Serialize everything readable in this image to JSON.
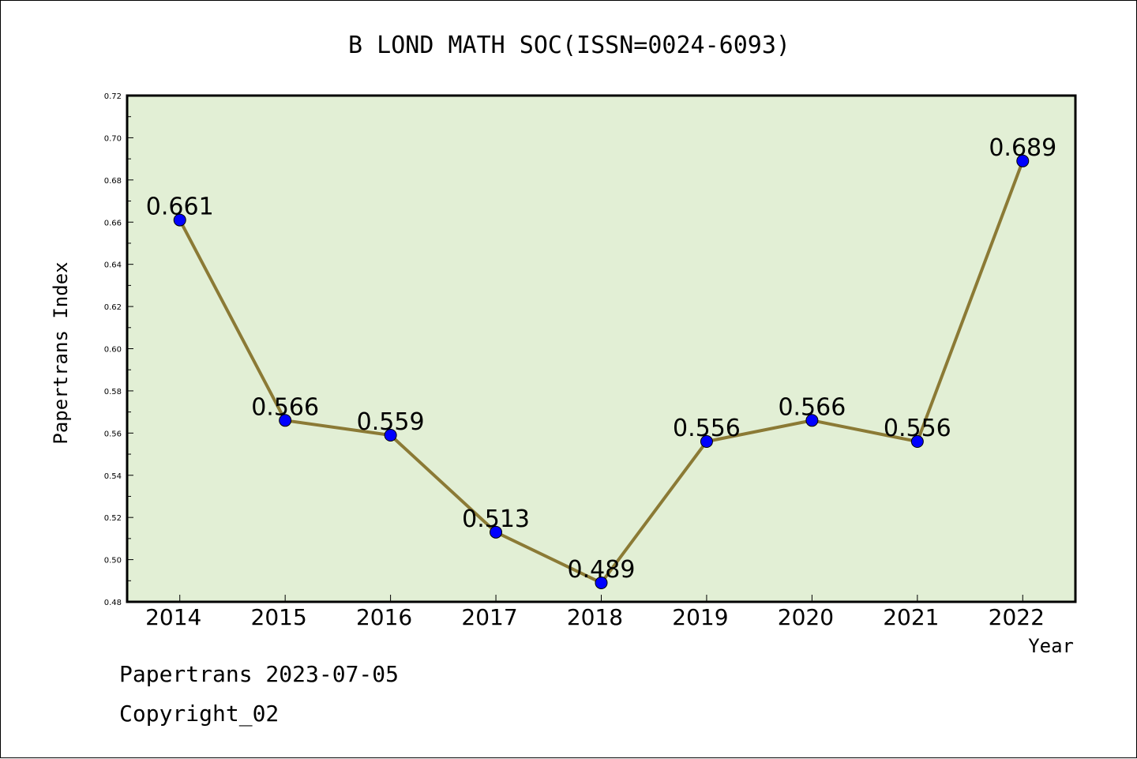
{
  "chart_data": {
    "type": "line",
    "title": "B LOND MATH SOC(ISSN=0024-6093)",
    "xlabel": "Year",
    "ylabel": "Papertrans Index",
    "categories": [
      "2014",
      "2015",
      "2016",
      "2017",
      "2018",
      "2019",
      "2020",
      "2021",
      "2022"
    ],
    "values": [
      0.661,
      0.566,
      0.559,
      0.513,
      0.489,
      0.556,
      0.566,
      0.556,
      0.689
    ],
    "value_labels": [
      "0.661",
      "0.566",
      "0.559",
      "0.513",
      "0.489",
      "0.556",
      "0.566",
      "0.556",
      "0.689"
    ],
    "ylim": [
      0.48,
      0.72
    ],
    "yticks": [
      "0.48",
      "0.50",
      "0.52",
      "0.54",
      "0.56",
      "0.58",
      "0.60",
      "0.62",
      "0.64",
      "0.66",
      "0.68",
      "0.70",
      "0.72"
    ],
    "grid": false,
    "colors": {
      "plot_background": "#e2efd5",
      "line": "#8b7a35",
      "marker": "#0000ff"
    }
  },
  "footer": {
    "line1": "Papertrans 2023-07-05",
    "line2": "Copyright_02"
  }
}
